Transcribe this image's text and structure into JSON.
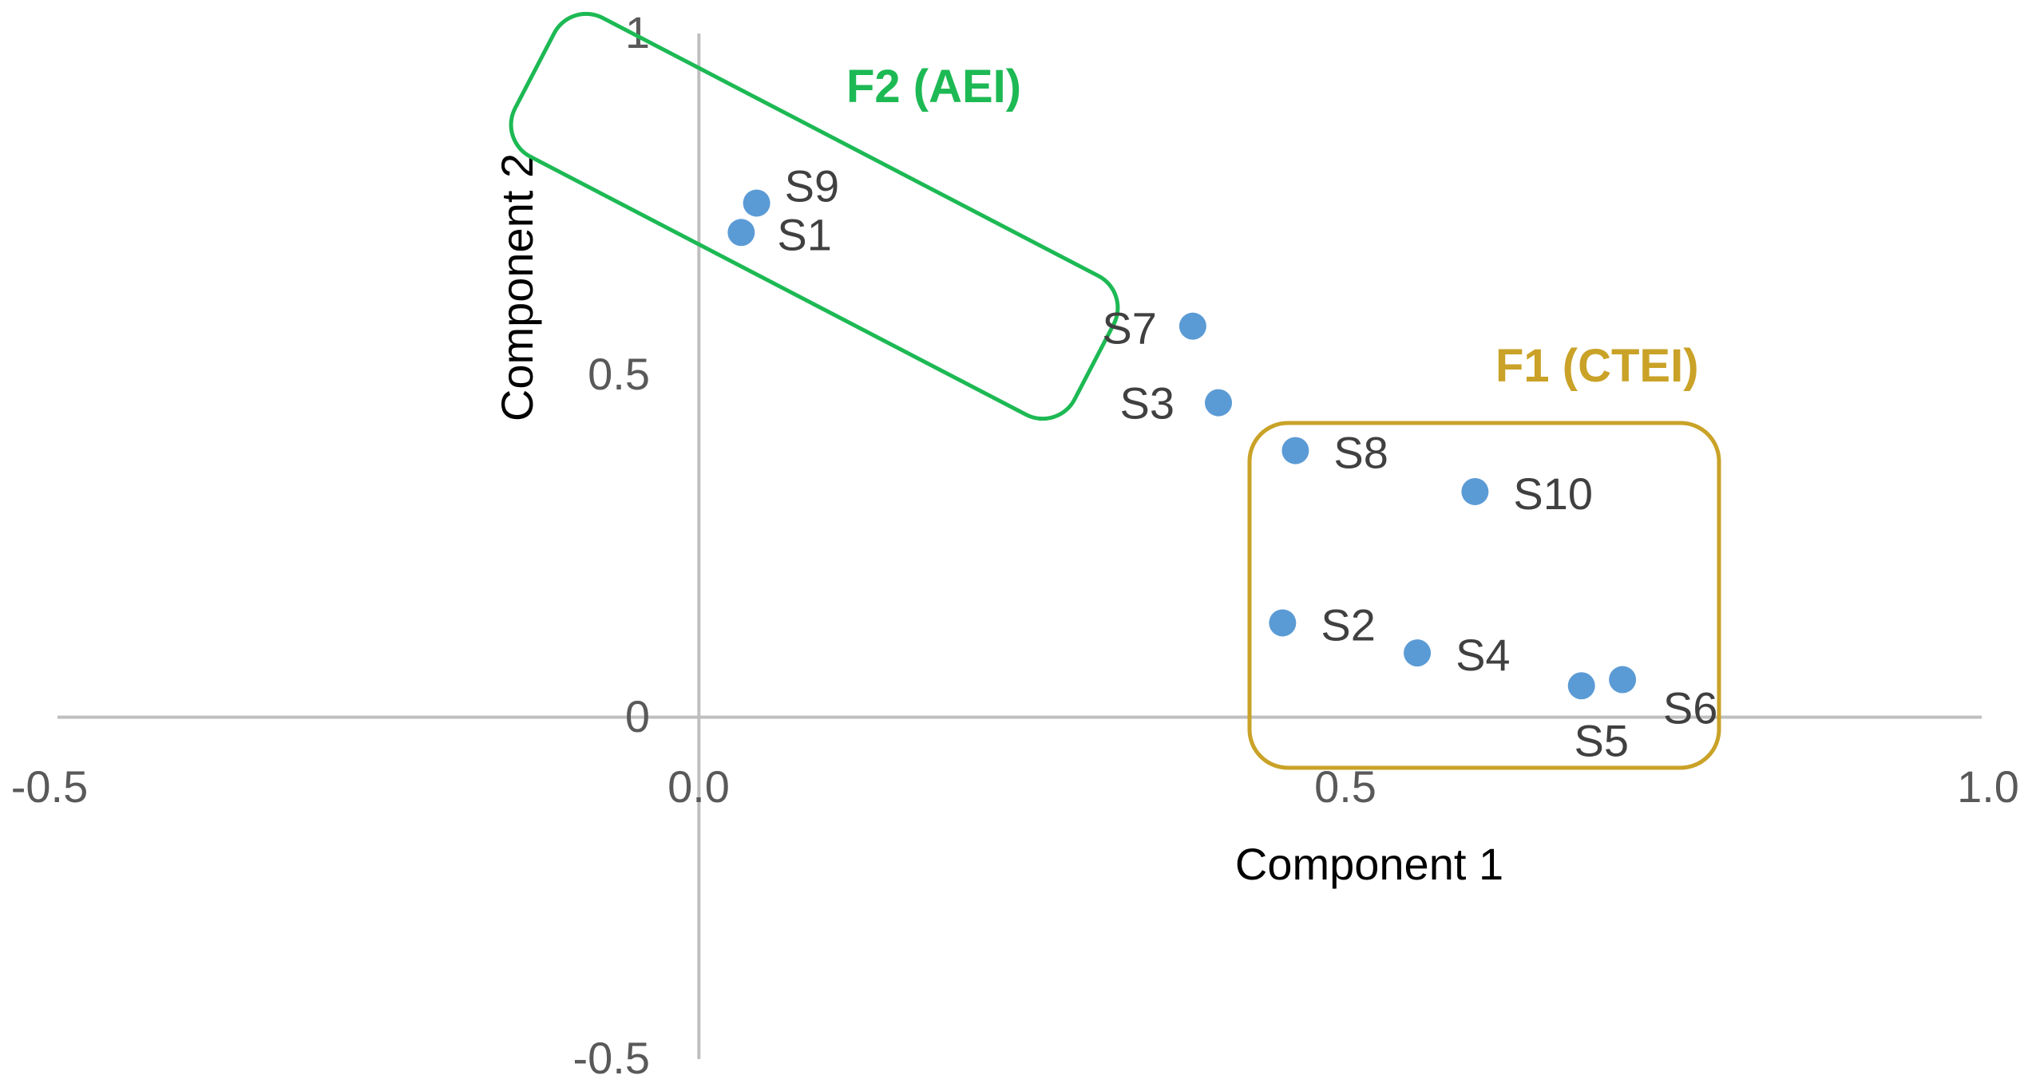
{
  "chart_data": {
    "type": "scatter",
    "title": "",
    "xlabel": "Component 1",
    "ylabel": "Component 2",
    "xlim": [
      -0.5,
      1.0
    ],
    "ylim": [
      -0.5,
      1.0
    ],
    "x_ticks": [
      "-0.5",
      "0.0",
      "0.5",
      "1.0"
    ],
    "y_ticks": [
      "-0.5",
      "0",
      "0.5",
      "1"
    ],
    "grid": false,
    "point_color": "#5B9BD5",
    "points": [
      {
        "label": "S9",
        "x": 0.045,
        "y": 0.752
      },
      {
        "label": "S1",
        "x": 0.033,
        "y": 0.709
      },
      {
        "label": "S7",
        "x": 0.385,
        "y": 0.572
      },
      {
        "label": "S3",
        "x": 0.405,
        "y": 0.46
      },
      {
        "label": "S8",
        "x": 0.465,
        "y": 0.39
      },
      {
        "label": "S10",
        "x": 0.605,
        "y": 0.33
      },
      {
        "label": "S2",
        "x": 0.455,
        "y": 0.138
      },
      {
        "label": "S4",
        "x": 0.56,
        "y": 0.094
      },
      {
        "label": "S5",
        "x": 0.688,
        "y": 0.046
      },
      {
        "label": "S6",
        "x": 0.72,
        "y": 0.055
      }
    ],
    "groups": [
      {
        "label": "F2 (AEI)",
        "color": "#1DB954",
        "members": [
          "S9",
          "S1",
          "S7",
          "S3"
        ]
      },
      {
        "label": "F1 (CTEI)",
        "color": "#C9A227",
        "members": [
          "S8",
          "S10",
          "S2",
          "S4",
          "S5",
          "S6"
        ]
      }
    ]
  }
}
